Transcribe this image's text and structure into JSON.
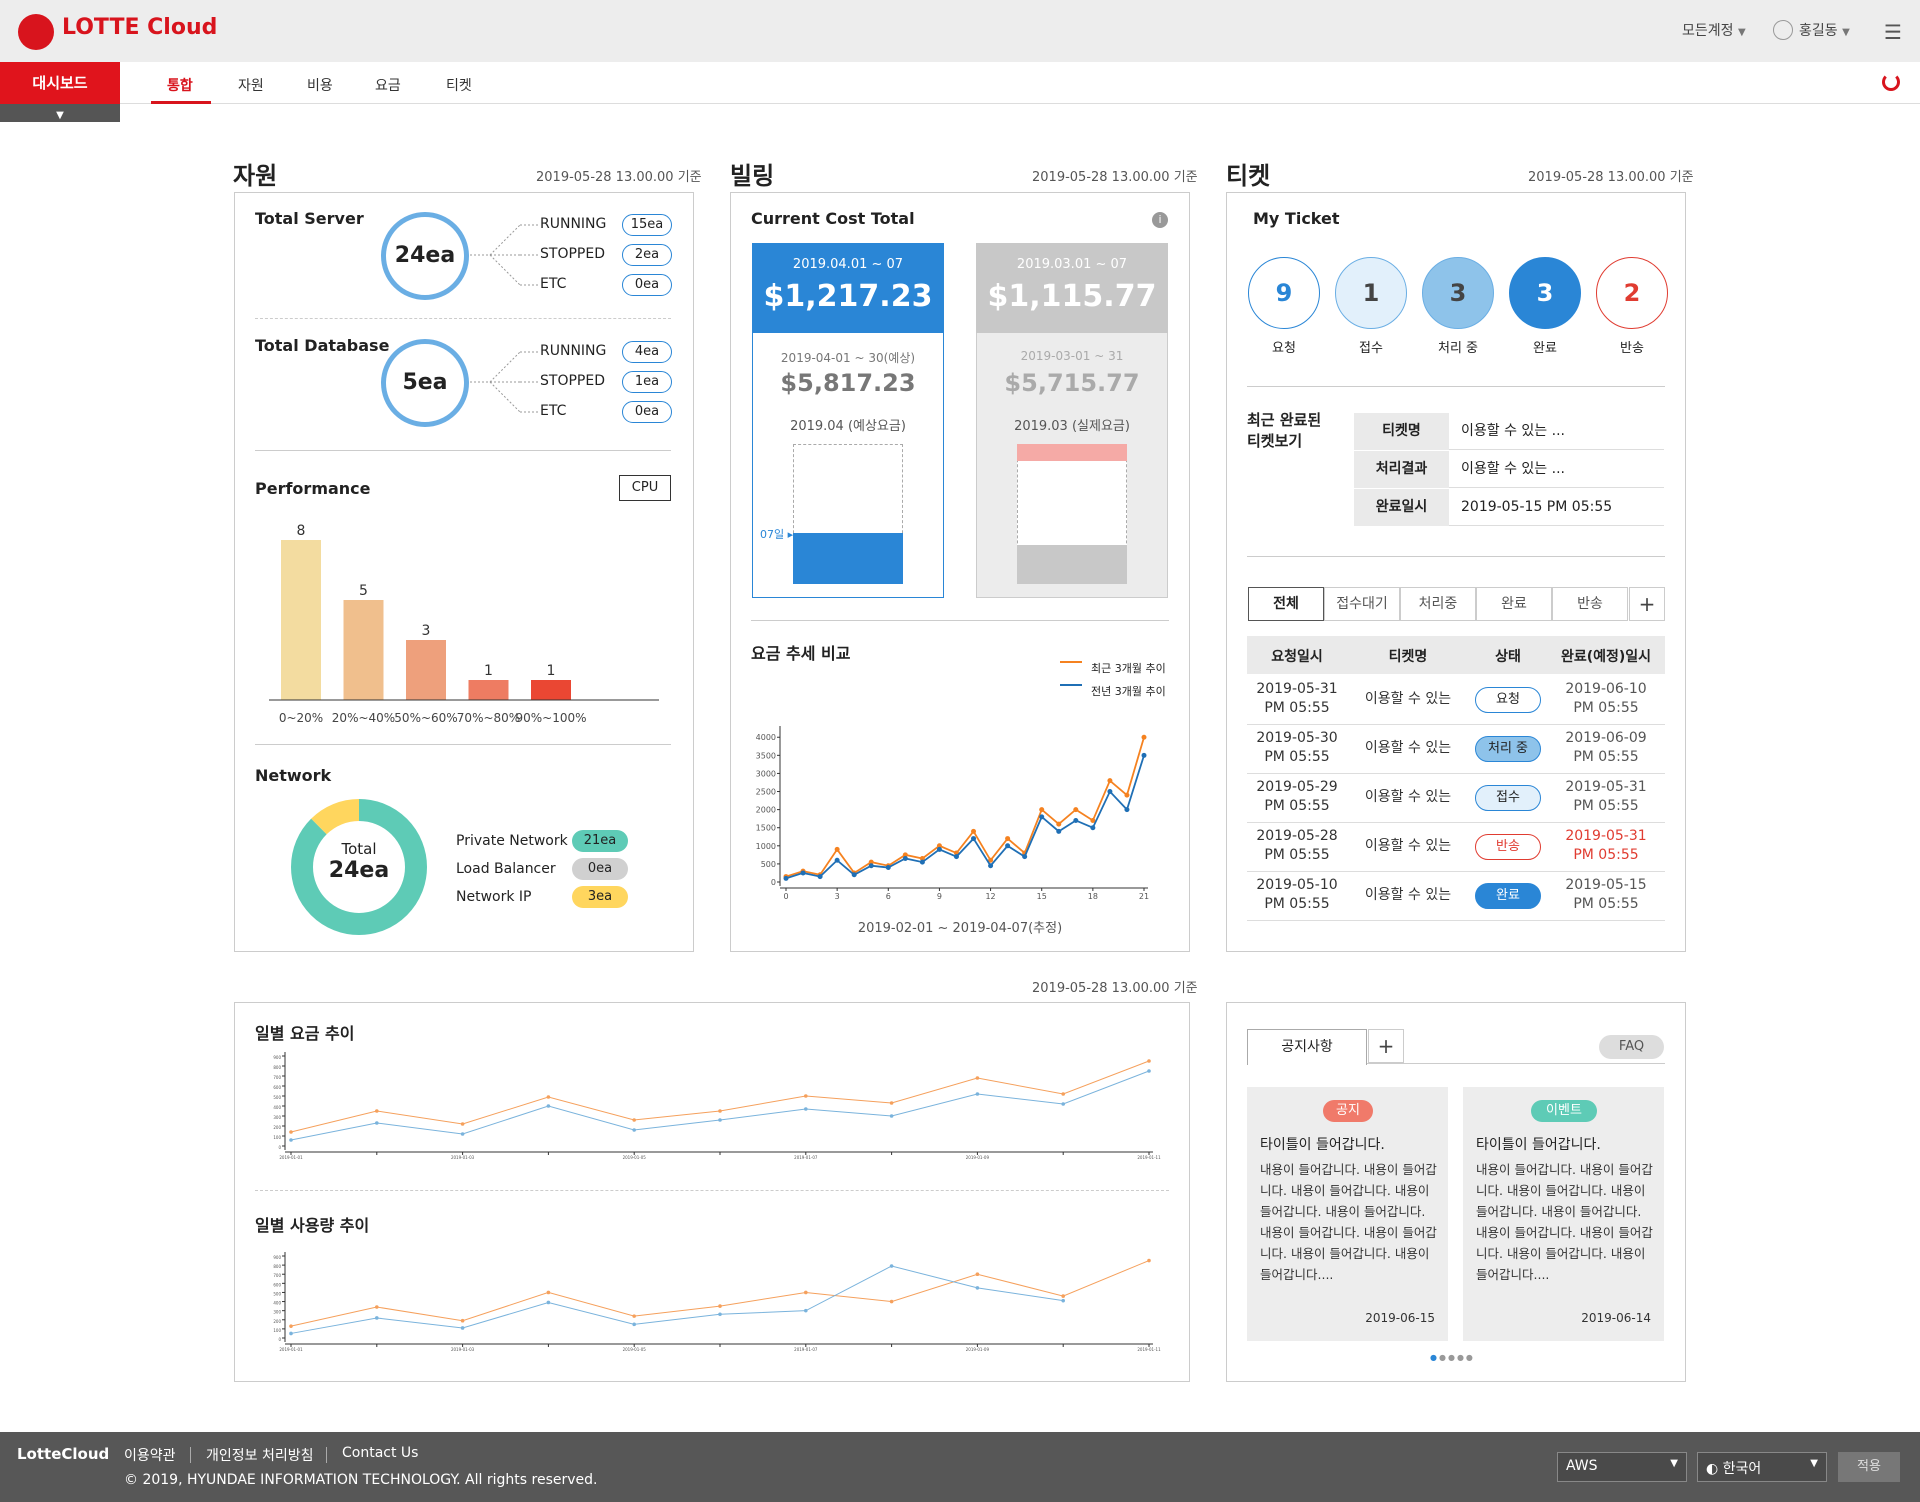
{
  "header": {
    "brand": "LOTTE Cloud",
    "account": "모든계정",
    "user": "홍길동"
  },
  "nav": {
    "dashboard": "대시보드",
    "tabs": [
      "통합",
      "자원",
      "비용",
      "요금",
      "티켓"
    ]
  },
  "sections": {
    "resource": "자원",
    "billing": "빌링",
    "ticket": "티켓",
    "stamp": "2019-05-28 13.00.00 기준"
  },
  "server": {
    "label": "Total Server",
    "total": "24ea",
    "rows": [
      {
        "name": "RUNNING",
        "val": "15ea"
      },
      {
        "name": "STOPPED",
        "val": "2ea"
      },
      {
        "name": "ETC",
        "val": "0ea"
      }
    ]
  },
  "database": {
    "label": "Total Database",
    "total": "5ea",
    "rows": [
      {
        "name": "RUNNING",
        "val": "4ea"
      },
      {
        "name": "STOPPED",
        "val": "1ea"
      },
      {
        "name": "ETC",
        "val": "0ea"
      }
    ]
  },
  "performance": {
    "label": "Performance",
    "select": "CPU"
  },
  "network": {
    "label": "Network",
    "total_label": "Total",
    "total": "24ea",
    "rows": [
      {
        "name": "Private Network",
        "val": "21ea",
        "color": "#5ecbb6"
      },
      {
        "name": "Load Balancer",
        "val": "0ea",
        "color": "#d0d0d0"
      },
      {
        "name": "Network IP",
        "val": "3ea",
        "color": "#ffd65e"
      }
    ]
  },
  "billing": {
    "label": "Current Cost Total",
    "current": {
      "period": "2019.04.01 ~ 07",
      "amount": "$1,217.23",
      "est_period": "2019-04-01 ~ 30(예상)",
      "est_amount": "$5,817.23",
      "caption": "2019.04 (예상요금)",
      "marker": "07일"
    },
    "previous": {
      "period": "2019.03.01 ~ 07",
      "amount": "$1,115.77",
      "est_period": "2019-03-01 ~ 31",
      "est_amount": "$5,715.77",
      "caption": "2019.03 (실제요금)"
    },
    "trend_title": "요금 추세 비교",
    "legend_recent": "최근 3개월 추이",
    "legend_prev": "전년 3개월 추이",
    "trend_range": "2019-02-01 ~ 2019-04-07(추정)"
  },
  "ticket": {
    "label": "My Ticket",
    "stats": [
      {
        "count": "9",
        "label": "요청"
      },
      {
        "count": "1",
        "label": "접수"
      },
      {
        "count": "3",
        "label": "처리 중"
      },
      {
        "count": "3",
        "label": "완료"
      },
      {
        "count": "2",
        "label": "반송"
      }
    ],
    "recent_title": "최근 완료된 티켓보기",
    "recent": [
      {
        "k": "티켓명",
        "v": "이용할 수 있는 ..."
      },
      {
        "k": "처리결과",
        "v": "이용할 수 있는 ..."
      },
      {
        "k": "완료일시",
        "v": "2019-05-15 PM 05:55"
      }
    ],
    "tabs": [
      "전체",
      "접수대기",
      "처리중",
      "완료",
      "반송"
    ],
    "columns": [
      "요청일시",
      "티켓명",
      "상태",
      "완료(예정)일시"
    ],
    "rows": [
      {
        "req": "2019-05-31",
        "req_t": "PM 05:55",
        "name": "이용할 수 있는",
        "status": "요청",
        "done": "2019-06-10",
        "done_t": "PM 05:55"
      },
      {
        "req": "2019-05-30",
        "req_t": "PM 05:55",
        "name": "이용할 수 있는",
        "status": "처리 중",
        "done": "2019-06-09",
        "done_t": "PM 05:55"
      },
      {
        "req": "2019-05-29",
        "req_t": "PM 05:55",
        "name": "이용할 수 있는",
        "status": "접수",
        "done": "2019-05-31",
        "done_t": "PM 05:55"
      },
      {
        "req": "2019-05-28",
        "req_t": "PM 05:55",
        "name": "이용할 수 있는",
        "status": "반송",
        "done": "2019-05-31",
        "done_t": "PM 05:55"
      },
      {
        "req": "2019-05-10",
        "req_t": "PM 05:55",
        "name": "이용할 수 있는",
        "status": "완료",
        "done": "2019-05-15",
        "done_t": "PM 05:55"
      }
    ]
  },
  "daily": {
    "cost_title": "일별 요금 추이",
    "usage_title": "일별 사용량 추이"
  },
  "notice": {
    "tab": "공지사항",
    "faq": "FAQ",
    "items": [
      {
        "tag": "공지",
        "title": "타이틀이 들어갑니다.",
        "body": "내용이 들어갑니다.  내용이 들어갑니다.  내용이 들어갑니다.  내용이 들어갑니다.  내용이 들어갑니다.  내용이 들어갑니다.  내용이 들어갑니다. 내용이 들어갑니다.  내용이 들어갑니다....",
        "date": "2019-06-15"
      },
      {
        "tag": "이벤트",
        "title": "타이틀이 들어갑니다.",
        "body": "내용이 들어갑니다.  내용이 들어갑니다.  내용이 들어갑니다.  내용이 들어갑니다.  내용이 들어갑니다.  내용이 들어갑니다.  내용이 들어갑니다. 내용이 들어갑니다.  내용이 들어갑니다....",
        "date": "2019-06-14"
      }
    ]
  },
  "footer": {
    "brand": "LotteCloud",
    "links": [
      "이용약관",
      "개인정보 처리방침",
      "Contact Us"
    ],
    "copyright": "© 2019, HYUNDAE INFORMATION TECHNOLOGY. All rights reserved.",
    "provider": "AWS",
    "language": "한국어",
    "apply": "적용"
  },
  "chart_data": [
    {
      "type": "bar",
      "title": "Performance",
      "categories": [
        "0~20%",
        "20%~40%",
        "50%~60%",
        "70%~80%",
        "90%~100%"
      ],
      "values": [
        8,
        5,
        3,
        1,
        1
      ],
      "colors": [
        "#f3dca0",
        "#f0bf8d",
        "#eea07c",
        "#ee7c62",
        "#ea4733"
      ]
    },
    {
      "type": "pie",
      "title": "Network",
      "categories": [
        "Private Network",
        "Load Balancer",
        "Network IP"
      ],
      "values": [
        21,
        0,
        3
      ]
    },
    {
      "type": "line",
      "title": "요금 추세 비교",
      "x": [
        0,
        1,
        2,
        3,
        4,
        5,
        6,
        7,
        8,
        9,
        10,
        11,
        12,
        13,
        14,
        15,
        16,
        17,
        18,
        19,
        20,
        21
      ],
      "xticks": [
        0,
        3,
        6,
        9,
        12,
        15,
        18,
        21
      ],
      "yticks": [
        0,
        500,
        1000,
        1500,
        2000,
        2500,
        3000,
        3500,
        4000
      ],
      "ylim": [
        0,
        4200
      ],
      "series": [
        {
          "name": "최근 3개월 추이",
          "color": "#f58220",
          "values": [
            150,
            300,
            200,
            900,
            250,
            550,
            450,
            750,
            650,
            1000,
            800,
            1400,
            600,
            1200,
            800,
            2000,
            1600,
            2000,
            1700,
            2800,
            2400,
            4000
          ]
        },
        {
          "name": "전년 3개월 추이",
          "color": "#1f6fb5",
          "values": [
            100,
            250,
            150,
            600,
            200,
            450,
            400,
            650,
            550,
            900,
            700,
            1200,
            450,
            1000,
            700,
            1800,
            1400,
            1700,
            1500,
            2500,
            2000,
            3500
          ]
        }
      ]
    },
    {
      "type": "line",
      "title": "일별 요금 추이",
      "x": [
        0,
        1,
        2,
        3,
        4,
        5,
        6,
        7,
        8,
        9,
        10
      ],
      "xticks": [
        "2019-01-01",
        "2019-01-02",
        "2019-01-03",
        "2019-01-04",
        "2019-01-05",
        "2019-01-06",
        "2019-01-07",
        "2019-01-08",
        "2019-01-09",
        "2019-01-10",
        "2019-01-11"
      ],
      "yticks": [
        0,
        100,
        200,
        300,
        400,
        500,
        600,
        700,
        800,
        900
      ],
      "ylim": [
        0,
        900
      ],
      "series": [
        {
          "color": "#f5a05c",
          "values": [
            140,
            350,
            220,
            490,
            260,
            350,
            500,
            430,
            680,
            520,
            850
          ]
        },
        {
          "color": "#7ab3dc",
          "values": [
            60,
            230,
            120,
            400,
            160,
            260,
            370,
            300,
            520,
            420,
            750
          ]
        }
      ]
    },
    {
      "type": "line",
      "title": "일별 사용량 추이",
      "x": [
        0,
        1,
        2,
        3,
        4,
        5,
        6,
        7,
        8,
        9,
        10
      ],
      "xticks": [
        "2019-01-01",
        "2019-01-02",
        "2019-01-03",
        "2019-01-04",
        "2019-01-05",
        "2019-01-06",
        "2019-01-07",
        "2019-01-08",
        "2019-01-09",
        "2019-01-10",
        "2019-01-11"
      ],
      "yticks": [
        0,
        100,
        200,
        300,
        400,
        500,
        600,
        700,
        800,
        900
      ],
      "ylim": [
        0,
        900
      ],
      "series": [
        {
          "color": "#f5a05c",
          "values": [
            130,
            340,
            190,
            500,
            240,
            350,
            500,
            400,
            700,
            460,
            850
          ]
        },
        {
          "color": "#7ab3dc",
          "values": [
            50,
            220,
            110,
            390,
            150,
            260,
            300,
            790,
            550,
            410,
            null
          ]
        }
      ]
    }
  ]
}
